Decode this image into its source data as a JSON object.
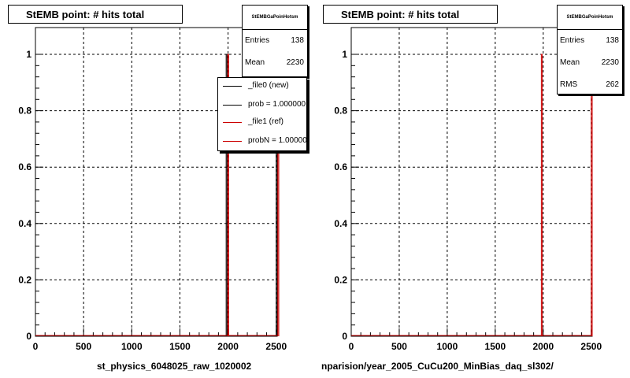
{
  "pads": [
    {
      "title": "StEMB point: # hits total",
      "stats": {
        "header": "StEMBGaPoinHotsm",
        "entries_label": "Entries",
        "entries": "138",
        "mean_label": "Mean",
        "mean": "2230"
      },
      "legend": [
        {
          "label": "_file0 (new)",
          "color": "#000000"
        },
        {
          "label": "prob = 1.000000",
          "color": "#000000"
        },
        {
          "label": "_file1 (ref)",
          "color": "#cc0000"
        },
        {
          "label": "probN = 1.000000",
          "color": "#cc0000"
        }
      ],
      "xtitle": "st_physics_6048025_raw_1020002"
    },
    {
      "title": "StEMB point: # hits total",
      "stats": {
        "header": "StEMBGaPoinHotsm",
        "entries_label": "Entries",
        "entries": "138",
        "mean_label": "Mean",
        "mean": "2230",
        "rms_label": "RMS",
        "rms": "262"
      },
      "xtitle": "nparision/year_2005_CuCu200_MinBias_daq_sl302/"
    }
  ],
  "chart_data": [
    {
      "type": "bar",
      "title": "StEMB point: # hits total",
      "xlabel": "st_physics_6048025_raw_1020002",
      "xlim": [
        0,
        2500
      ],
      "ylim": [
        0,
        1.05
      ],
      "xticks": [
        0,
        500,
        1000,
        1500,
        2000,
        2500
      ],
      "yticks": [
        0,
        0.2,
        0.4,
        0.6,
        0.8,
        1
      ],
      "grid": true,
      "series": [
        {
          "name": "_file0 (new)",
          "color": "#000000",
          "x": [
            1980,
            2500
          ],
          "values": [
            1,
            1
          ]
        },
        {
          "name": "_file1 (ref)",
          "color": "#cc0000",
          "x": [
            1980,
            2500
          ],
          "values": [
            1,
            1
          ]
        }
      ]
    },
    {
      "type": "bar",
      "title": "StEMB point: # hits total",
      "xlabel": "nparision/year_2005_CuCu200_MinBias_daq_sl302/",
      "xlim": [
        0,
        2500
      ],
      "ylim": [
        0,
        1.05
      ],
      "xticks": [
        0,
        500,
        1000,
        1500,
        2000,
        2500
      ],
      "yticks": [
        0,
        0.2,
        0.4,
        0.6,
        0.8,
        1
      ],
      "grid": true,
      "series": [
        {
          "name": "",
          "color": "#cc0000",
          "x": [
            1980,
            2500
          ],
          "values": [
            1,
            1
          ]
        }
      ]
    }
  ]
}
